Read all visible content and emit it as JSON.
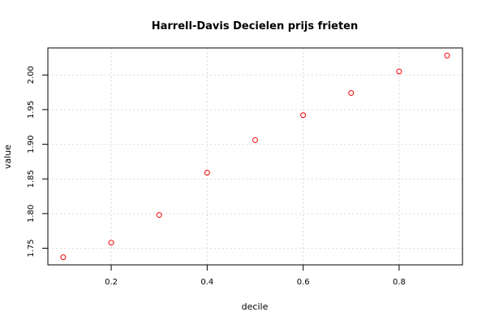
{
  "chart_data": {
    "type": "scatter",
    "title": "Harrell-Davis Decielen prijs frieten",
    "xlabel": "decile",
    "ylabel": "value",
    "x": [
      0.1,
      0.2,
      0.3,
      0.4,
      0.5,
      0.6,
      0.7,
      0.8,
      0.9
    ],
    "y": [
      1.737,
      1.758,
      1.798,
      1.859,
      1.906,
      1.942,
      1.974,
      2.005,
      2.028
    ],
    "xlim": [
      0.068,
      0.932
    ],
    "ylim": [
      1.726,
      2.039
    ],
    "x_ticks": [
      0.2,
      0.4,
      0.6,
      0.8
    ],
    "x_tick_labels": [
      "0.2",
      "0.4",
      "0.6",
      "0.8"
    ],
    "y_ticks": [
      1.75,
      1.8,
      1.85,
      1.9,
      1.95,
      2.0
    ],
    "y_tick_labels": [
      "1.75",
      "1.80",
      "1.85",
      "1.90",
      "1.95",
      "2.00"
    ],
    "grid": true,
    "point_color": "#ff0000",
    "legend": "none"
  }
}
